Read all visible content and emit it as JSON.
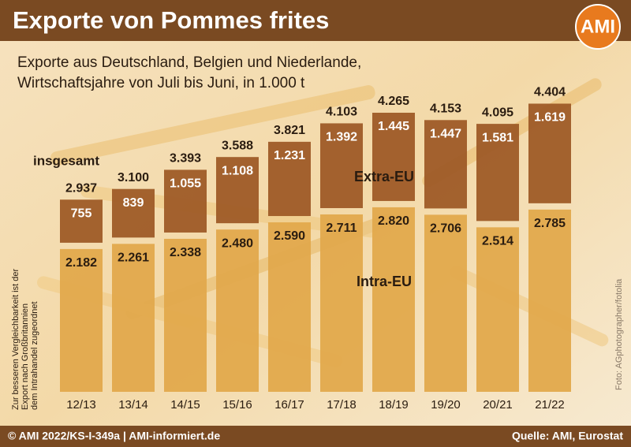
{
  "chart_data": {
    "type": "bar",
    "stacked": true,
    "title": "Exporte von Pommes frites",
    "logo": "AMI",
    "subtitle": [
      "Exporte aus Deutschland, Belgien und Niederlande,",
      "Wirtschaftsjahre von Juli bis Juni, in 1.000 t"
    ],
    "categories": [
      "12/13",
      "13/14",
      "14/15",
      "15/16",
      "16/17",
      "17/18",
      "18/19",
      "19/20",
      "20/21",
      "21/22"
    ],
    "series": [
      {
        "name": "Intra-EU",
        "color": "#e2a94c",
        "values": [
          2182,
          2261,
          2338,
          2480,
          2590,
          2711,
          2820,
          2706,
          2514,
          2785
        ],
        "value_labels": [
          "2.182",
          "2.261",
          "2.338",
          "2.480",
          "2.590",
          "2.711",
          "2.820",
          "2.706",
          "2.514",
          "2.785"
        ]
      },
      {
        "name": "Extra-EU",
        "color": "#9e5b27",
        "values": [
          755,
          839,
          1055,
          1108,
          1231,
          1392,
          1445,
          1447,
          1581,
          1619
        ],
        "value_labels": [
          "755",
          "839",
          "1.055",
          "1.108",
          "1.231",
          "1.392",
          "1.445",
          "1.447",
          "1.581",
          "1.619"
        ]
      }
    ],
    "totals": {
      "name": "insgesamt",
      "values": [
        2937,
        3100,
        3393,
        3588,
        3821,
        4103,
        4265,
        4153,
        4095,
        4404
      ],
      "value_labels": [
        "2.937",
        "3.100",
        "3.393",
        "3.588",
        "3.821",
        "4.103",
        "4.265",
        "4.153",
        "4.095",
        "4.404"
      ]
    },
    "note": [
      "Zur besseren Vergleichbarkeit ist der",
      "Export nach Großbritannien",
      "dem Intrahandel zugeordnet"
    ],
    "photo_credit": "Foto: AGphotographer/fotolia",
    "footer_left": "© AMI 2022/KS-I-349a | AMI-informiert.de",
    "footer_right": "Quelle: AMI, Eurostat"
  }
}
